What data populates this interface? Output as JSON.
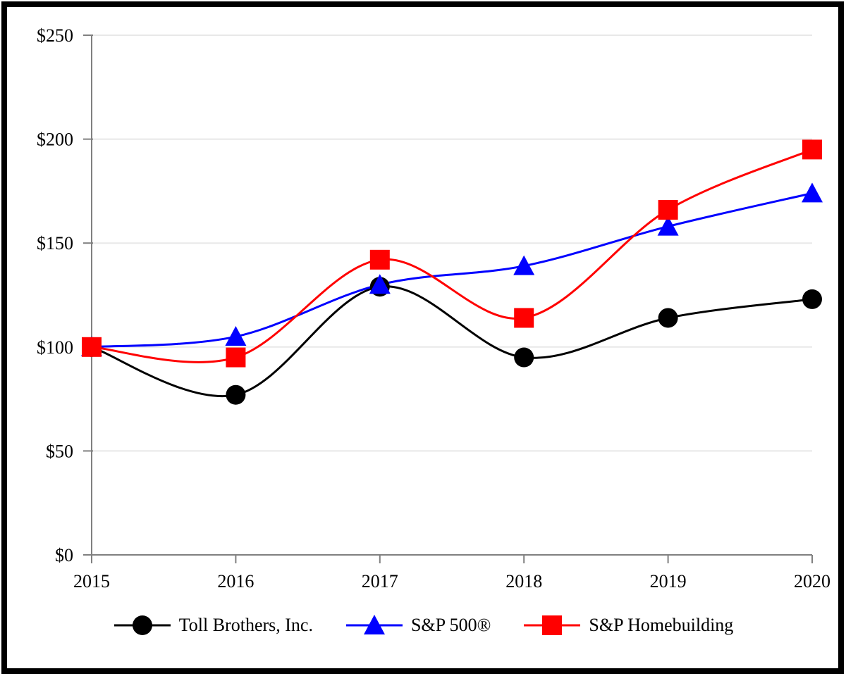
{
  "chart_data": {
    "type": "line",
    "title": "",
    "x_label": "",
    "y_label": "",
    "x_categories": [
      "2015",
      "2016",
      "2017",
      "2018",
      "2019",
      "2020"
    ],
    "series": [
      {
        "name": "Toll Brothers, Inc.",
        "marker": "circle",
        "color": "#000000",
        "values": [
          100,
          77,
          129,
          95,
          114,
          123
        ]
      },
      {
        "name": "S&P 500®",
        "marker": "triangle",
        "color": "#0000ff",
        "values": [
          100,
          105,
          130,
          139,
          158,
          174
        ]
      },
      {
        "name": "S&P Homebuilding",
        "marker": "square",
        "color": "#ff0000",
        "values": [
          100,
          95,
          142,
          114,
          166,
          195
        ]
      }
    ],
    "y_axis": {
      "min": 0,
      "max": 250,
      "step": 50,
      "tick_labels": [
        "$0",
        "$50",
        "$100",
        "$150",
        "$200",
        "$250"
      ]
    },
    "grid": "horizontal",
    "smooth_lines": true,
    "legend_position": "bottom",
    "colors": {
      "axis": "#808080",
      "gridline": "#e8e8e8",
      "background": "#ffffff",
      "frame_border": "#000000"
    }
  }
}
